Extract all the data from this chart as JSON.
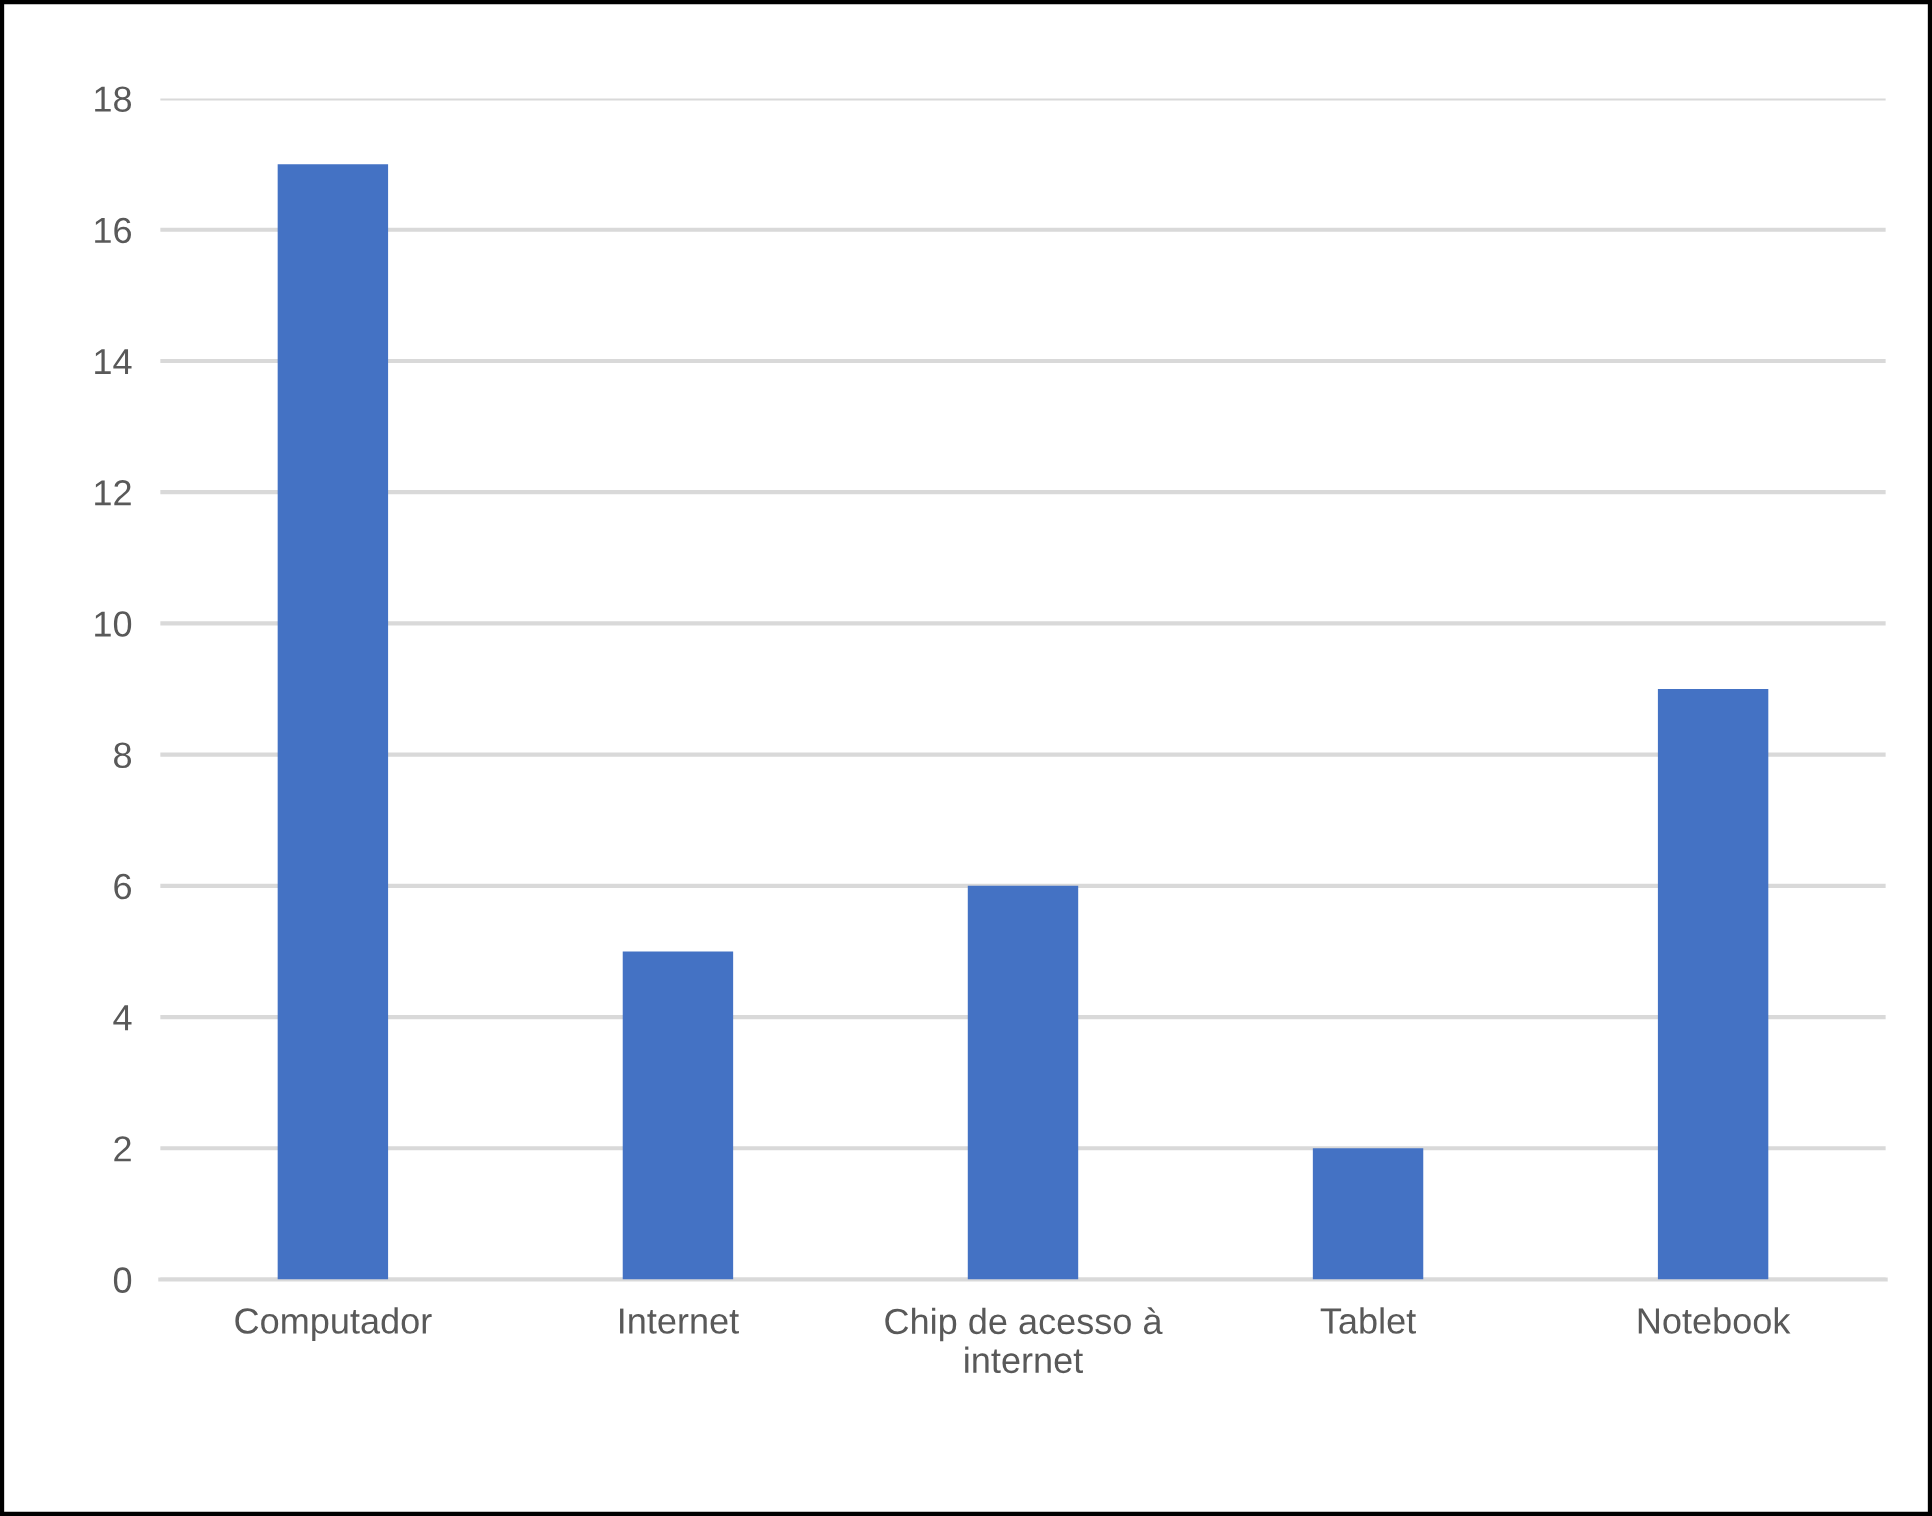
{
  "chart_data": {
    "type": "bar",
    "categories": [
      "Computador",
      "Internet",
      "Chip de acesso à\ninternet",
      "Tablet",
      "Notebook"
    ],
    "values": [
      17,
      5,
      6,
      2,
      9
    ],
    "color": "#4472c4",
    "ylim": [
      0,
      18
    ],
    "yticks": [
      0,
      2,
      4,
      6,
      8,
      10,
      12,
      14,
      16,
      18
    ],
    "grid": "y",
    "legend": false
  }
}
